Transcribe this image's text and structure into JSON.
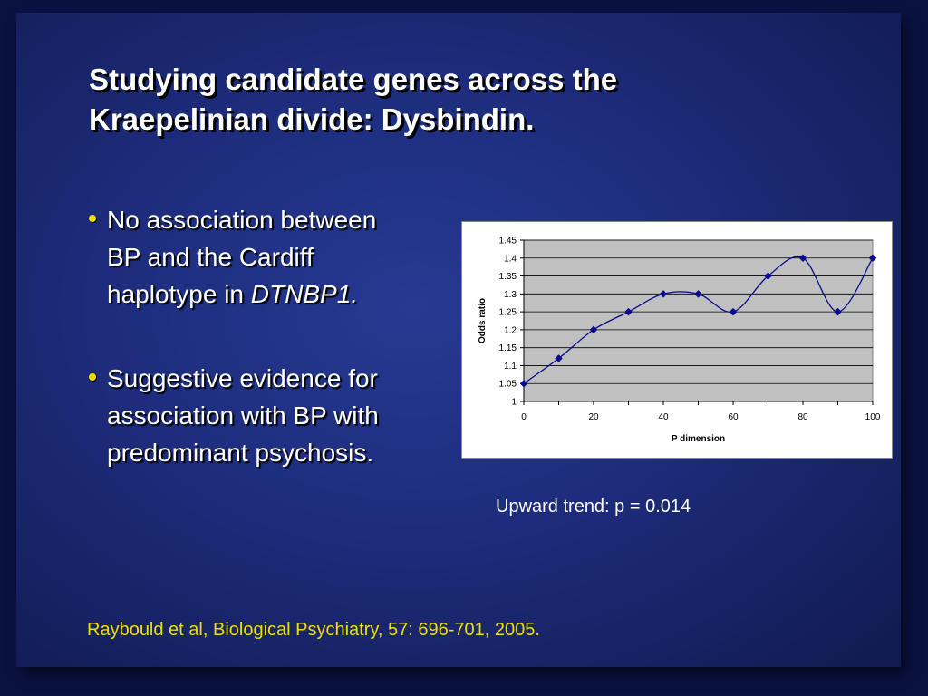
{
  "slide": {
    "title_line1": "Studying candidate genes across the",
    "title_line2": "Kraepelinian divide: Dysbindin.",
    "bullets": [
      {
        "line1": "No association between",
        "line2": "BP and the Cardiff",
        "line3_prefix": "haplotype in ",
        "line3_italic": "DTNBP1."
      },
      {
        "line1": "Suggestive evidence for",
        "line2": "association with BP with",
        "line3": "predominant psychosis."
      }
    ],
    "caption": "Upward trend: p = 0.014",
    "citation": "Raybould et al, Biological Psychiatry, 57: 696-701, 2005.",
    "colors": {
      "background": "#1d2c7c",
      "accent": "#f0e000",
      "text": "#ffffff",
      "plot_area": "#c0c0c0",
      "series": "#0a0a8c"
    }
  },
  "chart_data": {
    "type": "line",
    "title": "",
    "xlabel": "P dimension",
    "ylabel": "Odds ratio",
    "xlim": [
      0,
      100
    ],
    "ylim": [
      1,
      1.45
    ],
    "x_ticks": [
      "0",
      "20",
      "40",
      "60",
      "80",
      "100"
    ],
    "y_ticks": [
      "1",
      "1.05",
      "1.1",
      "1.15",
      "1.2",
      "1.25",
      "1.3",
      "1.35",
      "1.4",
      "1.45"
    ],
    "grid": true,
    "smooth": true,
    "series": [
      {
        "x": [
          0,
          10,
          20,
          30,
          40,
          50,
          60,
          70,
          80,
          90,
          100
        ],
        "y": [
          1.05,
          1.12,
          1.2,
          1.25,
          1.3,
          1.3,
          1.25,
          1.35,
          1.4,
          1.25,
          1.4
        ]
      }
    ]
  }
}
